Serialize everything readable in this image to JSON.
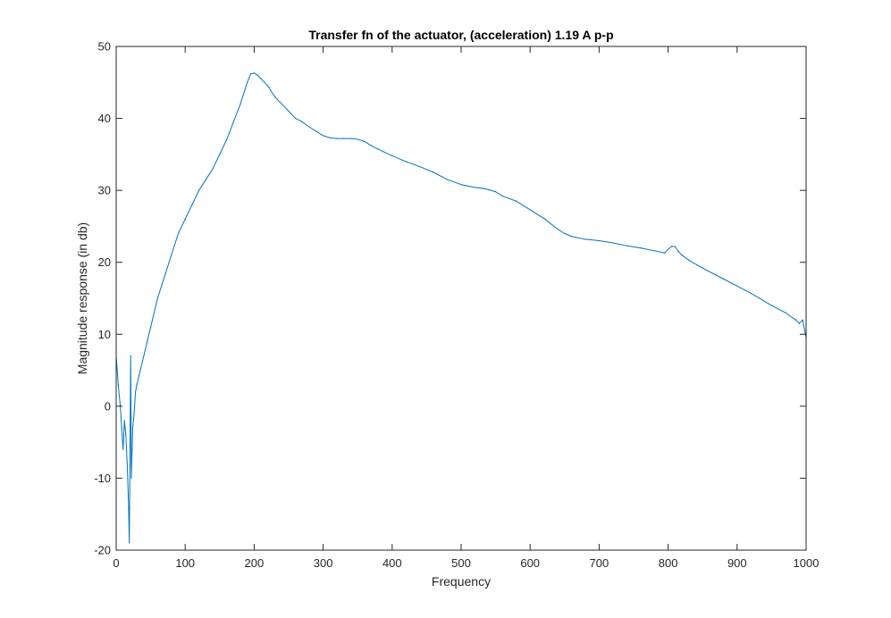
{
  "chart_data": {
    "type": "line",
    "title": "Transfer fn of the actuator, (acceleration) 1.19 A p-p",
    "xlabel": "Frequency",
    "ylabel": "Magnitude response (in db)",
    "xlim": [
      0,
      1000
    ],
    "ylim": [
      -20,
      50
    ],
    "xticks": [
      0,
      100,
      200,
      300,
      400,
      500,
      600,
      700,
      800,
      900,
      1000
    ],
    "yticks": [
      -20,
      -10,
      0,
      10,
      20,
      30,
      40,
      50
    ],
    "grid": false,
    "line_color": "#0072BD",
    "series": [
      {
        "x": [
          0,
          3,
          6,
          8,
          10,
          12,
          14,
          16,
          18,
          19,
          20,
          21,
          22,
          24,
          26,
          28,
          30,
          35,
          40,
          45,
          50,
          60,
          70,
          80,
          90,
          100,
          110,
          120,
          130,
          140,
          150,
          160,
          170,
          180,
          190,
          195,
          200,
          205,
          210,
          220,
          230,
          240,
          250,
          260,
          270,
          280,
          290,
          300,
          310,
          320,
          330,
          340,
          350,
          360,
          370,
          380,
          400,
          420,
          440,
          460,
          480,
          500,
          520,
          530,
          540,
          550,
          560,
          580,
          600,
          620,
          640,
          650,
          660,
          680,
          700,
          720,
          740,
          760,
          780,
          795,
          800,
          805,
          810,
          815,
          820,
          830,
          850,
          880,
          900,
          920,
          950,
          970,
          985,
          990,
          995,
          1000
        ],
        "y": [
          7,
          3,
          0,
          -3,
          -6,
          -2,
          -4,
          -8,
          -14,
          -19,
          -7,
          7,
          -10,
          -3,
          -1,
          2,
          3,
          5,
          7,
          9,
          11,
          15,
          18,
          21,
          24,
          26,
          28,
          30,
          31.5,
          33,
          35,
          37,
          39.5,
          42,
          45,
          46.2,
          46.3,
          46,
          45.5,
          44.5,
          43,
          42,
          41,
          40,
          39.5,
          38.8,
          38.2,
          37.6,
          37.3,
          37.2,
          37.2,
          37.2,
          37.1,
          36.8,
          36.2,
          35.7,
          34.8,
          34,
          33.3,
          32.5,
          31.5,
          30.8,
          30.4,
          30.3,
          30.1,
          29.8,
          29.2,
          28.5,
          27.3,
          26.1,
          24.6,
          24,
          23.6,
          23.2,
          23,
          22.7,
          22.3,
          22,
          21.6,
          21.3,
          21.8,
          22.2,
          22.2,
          21.5,
          21,
          20.3,
          19.2,
          17.7,
          16.7,
          15.7,
          14,
          13,
          12,
          11.5,
          12,
          9.5
        ]
      }
    ]
  }
}
